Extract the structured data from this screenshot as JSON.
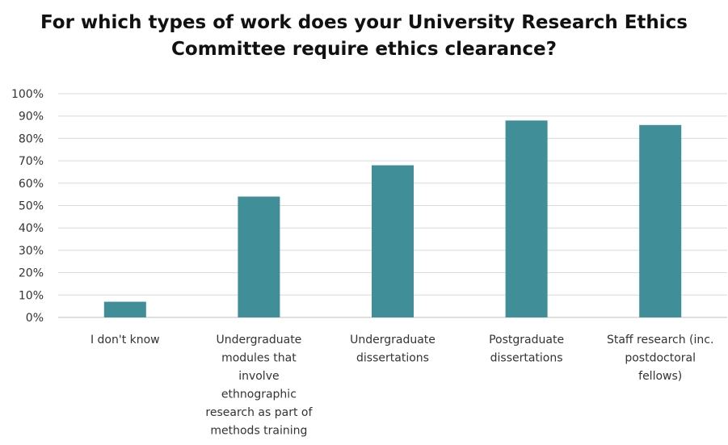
{
  "chart_data": {
    "type": "bar",
    "title_lines": [
      "For which types of work does your University Research Ethics",
      "Committee require ethics clearance?"
    ],
    "categories": [
      [
        "I don't know"
      ],
      [
        "Undergraduate",
        "modules that",
        "involve",
        "ethnographic",
        "research as part of",
        "methods training"
      ],
      [
        "Undergraduate",
        "dissertations"
      ],
      [
        "Postgraduate",
        "dissertations"
      ],
      [
        "Staff research (inc.",
        "postdoctoral",
        "fellows)"
      ]
    ],
    "values": [
      7,
      54,
      68,
      88,
      86
    ],
    "y_ticks": [
      "0%",
      "10%",
      "20%",
      "30%",
      "40%",
      "50%",
      "60%",
      "70%",
      "80%",
      "90%",
      "100%"
    ],
    "ylim": [
      0,
      100
    ],
    "grid": true,
    "legend": "none",
    "bar_color": "#3f8e98",
    "grid_color": "#d9d9d9",
    "axis_color": "#bfbfbf"
  }
}
